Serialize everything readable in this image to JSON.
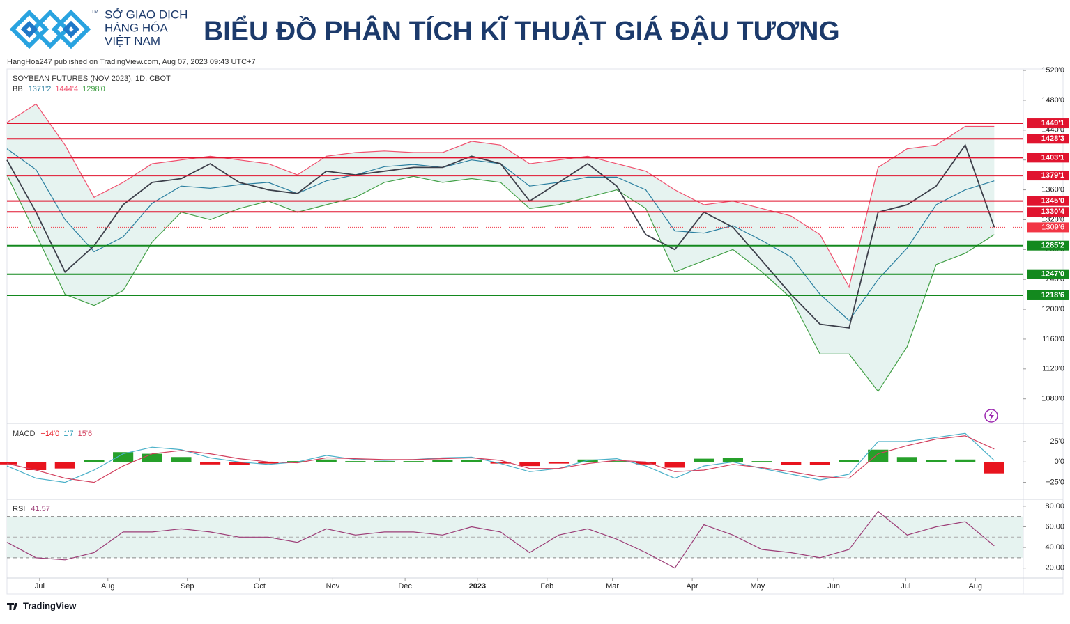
{
  "header": {
    "mark": "TM",
    "brand": [
      "SỞ GIAO DỊCH",
      "HÀNG HÓA",
      "VIỆT NAM"
    ],
    "title": "BIỂU ĐỒ PHÂN TÍCH KĨ THUẬT GIÁ ĐẬU TƯƠNG"
  },
  "published": "HangHoa247 published on TradingView.com, Aug 07, 2023 09:43 UTC+7",
  "footer": "TradingView",
  "chart_data": [
    {
      "type": "line",
      "title": "SOYBEAN FUTURES (NOV 2023), 1D, CBOT",
      "x": [
        0,
        2,
        4,
        6,
        8,
        10,
        12,
        14,
        16,
        18,
        20,
        22,
        24,
        26,
        28,
        30,
        32,
        34,
        36,
        38,
        40,
        42,
        44,
        46,
        48,
        50,
        52,
        54,
        56,
        58,
        60,
        62,
        64,
        66,
        68
      ],
      "xlim": [
        0,
        70
      ],
      "xticks": [
        {
          "value": 2.25,
          "label": "Jul"
        },
        {
          "value": 6.95,
          "label": "Aug"
        },
        {
          "value": 12.42,
          "label": "Sep"
        },
        {
          "value": 17.4,
          "label": "Oct"
        },
        {
          "value": 22.44,
          "label": "Nov"
        },
        {
          "value": 27.42,
          "label": "Dec"
        },
        {
          "value": 32.4,
          "label": "2023"
        },
        {
          "value": 37.2,
          "label": "Feb"
        },
        {
          "value": 41.7,
          "label": "Mar"
        },
        {
          "value": 47.2,
          "label": "Apr"
        },
        {
          "value": 51.7,
          "label": "May"
        },
        {
          "value": 56.95,
          "label": "Jun"
        },
        {
          "value": 61.9,
          "label": "Jul"
        },
        {
          "value": 66.7,
          "label": "Aug"
        }
      ],
      "ylim": [
        1048,
        1521
      ],
      "yticks": [
        {
          "value": 1520,
          "label": "1520'0"
        },
        {
          "value": 1480,
          "label": "1480'0"
        },
        {
          "value": 1440,
          "label": "1440'0"
        },
        {
          "value": 1400,
          "label": "1400'0"
        },
        {
          "value": 1360,
          "label": "1360'0"
        },
        {
          "value": 1320,
          "label": "1320'0"
        },
        {
          "value": 1280,
          "label": "1280'0"
        },
        {
          "value": 1240,
          "label": "1240'0"
        },
        {
          "value": 1200,
          "label": "1200'0"
        },
        {
          "value": 1160,
          "label": "1160'0"
        },
        {
          "value": 1120,
          "label": "1120'0"
        },
        {
          "value": 1080,
          "label": "1080'0"
        }
      ],
      "band_fill": "#e6f3f0",
      "series": [
        {
          "color": "#f0506e",
          "values": [
            1450,
            1475,
            1420,
            1350,
            1370,
            1395,
            1400,
            1405,
            1400,
            1395,
            1380,
            1405,
            1410,
            1412,
            1410,
            1410,
            1425,
            1420,
            1395,
            1400,
            1405,
            1395,
            1385,
            1360,
            1340,
            1345,
            1335,
            1325,
            1300,
            1230,
            1390,
            1415,
            1420,
            1445,
            1445
          ]
        },
        {
          "color": "#43a047",
          "values": [
            1380,
            1300,
            1220,
            1205,
            1225,
            1290,
            1330,
            1320,
            1335,
            1345,
            1330,
            1340,
            1350,
            1370,
            1378,
            1370,
            1375,
            1370,
            1335,
            1340,
            1350,
            1360,
            1335,
            1250,
            1265,
            1280,
            1250,
            1215,
            1140,
            1140,
            1090,
            1150,
            1260,
            1275,
            1300
          ]
        },
        {
          "color": "#2a7fa0",
          "values": [
            1415,
            1387,
            1320,
            1277,
            1297,
            1342,
            1365,
            1362,
            1367,
            1370,
            1355,
            1372,
            1380,
            1391,
            1394,
            1390,
            1400,
            1395,
            1365,
            1370,
            1377,
            1377,
            1360,
            1305,
            1302,
            1312,
            1292,
            1270,
            1220,
            1185,
            1240,
            1282,
            1340,
            1360,
            1372
          ]
        },
        {
          "color": "#3c3f4a",
          "values": [
            1400,
            1330,
            1250,
            1285,
            1340,
            1370,
            1375,
            1395,
            1370,
            1360,
            1355,
            1385,
            1380,
            1385,
            1390,
            1390,
            1405,
            1395,
            1345,
            1370,
            1395,
            1365,
            1300,
            1280,
            1330,
            1310,
            1265,
            1220,
            1180,
            1175,
            1330,
            1340,
            1365,
            1420,
            1310
          ]
        }
      ],
      "legend": {
        "label": "BB",
        "values": [
          {
            "value": 1371.25,
            "label": "1371'2",
            "color": "#2a7fa0"
          },
          {
            "value": 1444.5,
            "label": "1444'4",
            "color": "#f0506e"
          },
          {
            "value": 1298,
            "label": "1298'0",
            "color": "#43a047"
          }
        ]
      },
      "levels": [
        {
          "value": 1449.125,
          "label": "1449'1",
          "color": "#e0142f"
        },
        {
          "value": 1428.375,
          "label": "1428'3",
          "color": "#e0142f"
        },
        {
          "value": 1403.125,
          "label": "1403'1",
          "color": "#e0142f"
        },
        {
          "value": 1379.125,
          "label": "1379'1",
          "color": "#e0142f"
        },
        {
          "value": 1345,
          "label": "1345'0",
          "color": "#e0142f"
        },
        {
          "value": 1330.5,
          "label": "1330'4",
          "color": "#e0142f"
        },
        {
          "value": 1285.25,
          "label": "1285'2",
          "color": "#13891e"
        },
        {
          "value": 1247,
          "label": "1247'0",
          "color": "#13891e"
        },
        {
          "value": 1218.75,
          "label": "1218'6",
          "color": "#13891e"
        }
      ],
      "last": {
        "value": 1309.75,
        "label": "1309'6",
        "color": "#f23645"
      }
    },
    {
      "type": "combo",
      "ylim": [
        -45,
        45.5
      ],
      "yticks": [
        {
          "value": 25,
          "label": "25'0"
        },
        {
          "value": 0,
          "label": "0'0"
        },
        {
          "value": -25,
          "label": "−25'0"
        }
      ],
      "bars": {
        "up_color": "#26a02a",
        "down_color": "#e8141e",
        "values": [
          -3,
          -10,
          -8,
          2,
          12,
          10,
          6,
          -3,
          -4,
          -2,
          1,
          3,
          1,
          1,
          1,
          2,
          2,
          -2,
          -5,
          -2,
          3,
          1,
          -3,
          -7,
          4,
          5,
          1,
          -4,
          -4,
          2,
          15,
          6,
          2,
          3,
          -14
        ]
      },
      "series": [
        {
          "color": "#4ab0c8",
          "values": [
            -5,
            -20,
            -25,
            -10,
            10,
            18,
            15,
            5,
            0,
            -3,
            0,
            8,
            3,
            2,
            3,
            5,
            6,
            -2,
            -12,
            -8,
            2,
            4,
            -5,
            -20,
            -5,
            0,
            -8,
            -15,
            -22,
            -15,
            25,
            25,
            30,
            35,
            1.875
          ]
        },
        {
          "color": "#d2405e",
          "values": [
            -2,
            -10,
            -20,
            -25,
            -5,
            10,
            14,
            10,
            4,
            0,
            -1,
            5,
            4,
            3,
            3,
            4,
            5,
            2,
            -8,
            -8,
            -2,
            2,
            0,
            -12,
            -10,
            -3,
            -7,
            -12,
            -18,
            -20,
            10,
            20,
            28,
            32,
            15.75
          ]
        }
      ],
      "legend": {
        "label": "MACD",
        "values": [
          {
            "value": -14,
            "label": "−14'0",
            "color": "#e8141e"
          },
          {
            "value": 1.875,
            "label": "1'7",
            "color": "#2a9db8"
          },
          {
            "value": 15.75,
            "label": "15'6",
            "color": "#d2405e"
          }
        ]
      }
    },
    {
      "type": "line",
      "ylim": [
        11,
        86
      ],
      "yticks": [
        {
          "value": 80,
          "label": "80.00"
        },
        {
          "value": 60,
          "label": "60.00"
        },
        {
          "value": 40,
          "label": "40.00"
        },
        {
          "value": 20,
          "label": "20.00"
        }
      ],
      "band": [
        30,
        70
      ],
      "midline": 50,
      "band_fill": "#e6f3f0",
      "series": [
        {
          "color": "#9c3d77",
          "values": [
            45,
            30,
            28,
            35,
            55,
            55,
            58,
            55,
            50,
            50,
            45,
            58,
            52,
            55,
            55,
            52,
            60,
            55,
            35,
            52,
            58,
            48,
            35,
            20,
            62,
            52,
            38,
            35,
            30,
            38,
            75,
            52,
            60,
            65,
            41.57
          ]
        }
      ],
      "legend": {
        "label": "RSI",
        "values": [
          {
            "value": 41.57,
            "color": "#9c3d77"
          }
        ]
      }
    }
  ]
}
